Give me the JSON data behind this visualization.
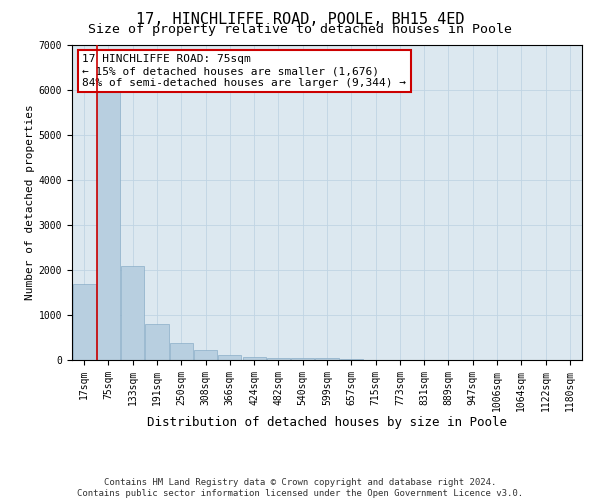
{
  "title1": "17, HINCHLIFFE ROAD, POOLE, BH15 4ED",
  "title2": "Size of property relative to detached houses in Poole",
  "xlabel": "Distribution of detached houses by size in Poole",
  "ylabel": "Number of detached properties",
  "categories": [
    "17sqm",
    "75sqm",
    "133sqm",
    "191sqm",
    "250sqm",
    "308sqm",
    "366sqm",
    "424sqm",
    "482sqm",
    "540sqm",
    "599sqm",
    "657sqm",
    "715sqm",
    "773sqm",
    "831sqm",
    "889sqm",
    "947sqm",
    "1006sqm",
    "1064sqm",
    "1122sqm",
    "1180sqm"
  ],
  "values": [
    1700,
    6100,
    2100,
    800,
    380,
    220,
    110,
    60,
    50,
    50,
    40,
    15,
    10,
    5,
    3,
    2,
    1,
    1,
    1,
    1,
    1
  ],
  "bar_color": "#b8cfe0",
  "bar_edge_color": "#8aaec8",
  "vline_color": "#cc0000",
  "vline_x_idx": 1,
  "annotation_line1": "17 HINCHLIFFE ROAD: 75sqm",
  "annotation_line2": "← 15% of detached houses are smaller (1,676)",
  "annotation_line3": "84% of semi-detached houses are larger (9,344) →",
  "annotation_box_color": "#ffffff",
  "annotation_border_color": "#cc0000",
  "ylim": [
    0,
    7000
  ],
  "yticks": [
    0,
    1000,
    2000,
    3000,
    4000,
    5000,
    6000,
    7000
  ],
  "footnote1": "Contains HM Land Registry data © Crown copyright and database right 2024.",
  "footnote2": "Contains public sector information licensed under the Open Government Licence v3.0.",
  "bg_color": "#ffffff",
  "plot_bg_color": "#dce8f0",
  "grid_color": "#c0d4e4",
  "title1_fontsize": 11,
  "title2_fontsize": 9.5,
  "xlabel_fontsize": 9,
  "ylabel_fontsize": 8,
  "tick_fontsize": 7,
  "annotation_fontsize": 8,
  "footnote_fontsize": 6.5
}
